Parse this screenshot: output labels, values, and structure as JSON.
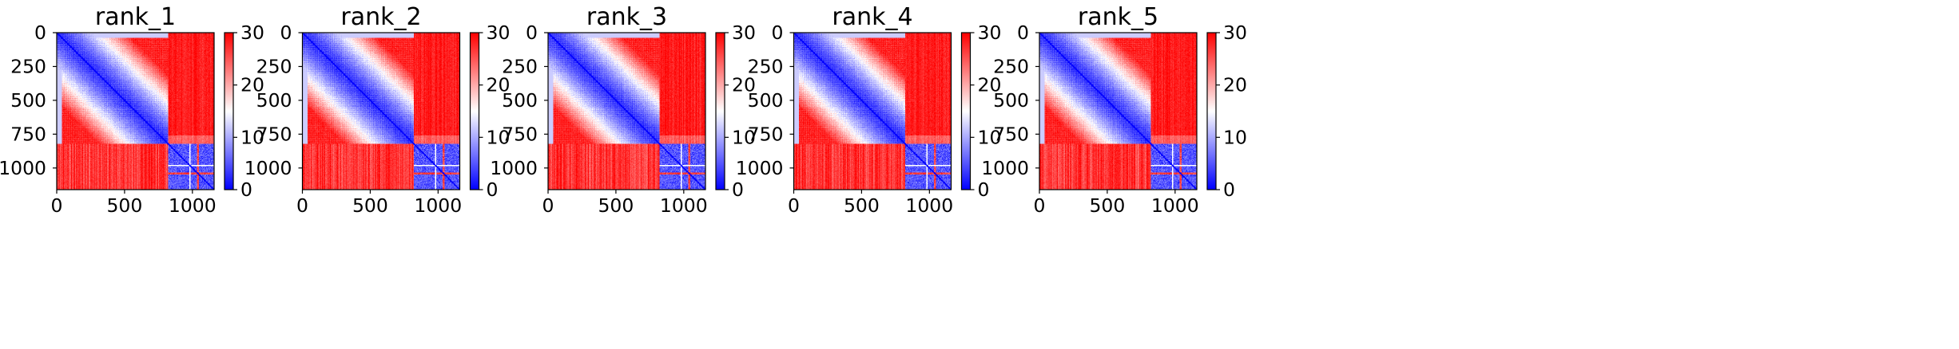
{
  "chart_data": [
    {
      "type": "heatmap",
      "title": "rank_1",
      "xlim": [
        0,
        1160
      ],
      "ylim": [
        1160,
        0
      ],
      "xticks": [
        0,
        500,
        1000
      ],
      "xticklabels": [
        "0",
        "500",
        "1000"
      ],
      "yticks": [
        0,
        250,
        500,
        750,
        1000
      ],
      "yticklabels": [
        "0",
        "250",
        "500",
        "750",
        "1000"
      ],
      "colorbar": {
        "cmap": "bwr",
        "vmin": 0,
        "vmax": 30,
        "ticks": [
          0,
          10,
          20,
          30
        ],
        "ticklabels": [
          "0",
          "10",
          "20",
          "30"
        ]
      },
      "blocks": {
        "split": 820,
        "block_a_range": [
          0,
          820
        ],
        "block_b_range": [
          820,
          1160
        ]
      },
      "values_approx": {
        "diagonal": 0,
        "within_block_a_near_diagonal": 3,
        "within_block_a_far": 28,
        "within_block_b": 5,
        "between_blocks": 30
      }
    },
    {
      "type": "heatmap",
      "title": "rank_2",
      "xlim": [
        0,
        1160
      ],
      "ylim": [
        1160,
        0
      ],
      "xticks": [
        0,
        500,
        1000
      ],
      "xticklabels": [
        "0",
        "500",
        "1000"
      ],
      "yticks": [
        0,
        250,
        500,
        750,
        1000
      ],
      "yticklabels": [
        "0",
        "250",
        "500",
        "750",
        "1000"
      ],
      "colorbar": {
        "cmap": "bwr",
        "vmin": 0,
        "vmax": 30,
        "ticks": [
          0,
          10,
          20,
          30
        ],
        "ticklabels": [
          "0",
          "10",
          "20",
          "30"
        ]
      },
      "blocks": {
        "split": 820,
        "block_a_range": [
          0,
          820
        ],
        "block_b_range": [
          820,
          1160
        ]
      },
      "values_approx": {
        "diagonal": 0,
        "within_block_a_near_diagonal": 3,
        "within_block_a_far": 28,
        "within_block_b": 5,
        "between_blocks": 30
      }
    },
    {
      "type": "heatmap",
      "title": "rank_3",
      "xlim": [
        0,
        1160
      ],
      "ylim": [
        1160,
        0
      ],
      "xticks": [
        0,
        500,
        1000
      ],
      "xticklabels": [
        "0",
        "500",
        "1000"
      ],
      "yticks": [
        0,
        250,
        500,
        750,
        1000
      ],
      "yticklabels": [
        "0",
        "250",
        "500",
        "750",
        "1000"
      ],
      "colorbar": {
        "cmap": "bwr",
        "vmin": 0,
        "vmax": 30,
        "ticks": [
          0,
          10,
          20,
          30
        ],
        "ticklabels": [
          "0",
          "10",
          "20",
          "30"
        ]
      },
      "blocks": {
        "split": 820,
        "block_a_range": [
          0,
          820
        ],
        "block_b_range": [
          820,
          1160
        ]
      },
      "values_approx": {
        "diagonal": 0,
        "within_block_a_near_diagonal": 3,
        "within_block_a_far": 28,
        "within_block_b": 5,
        "between_blocks": 30
      }
    },
    {
      "type": "heatmap",
      "title": "rank_4",
      "xlim": [
        0,
        1160
      ],
      "ylim": [
        1160,
        0
      ],
      "xticks": [
        0,
        500,
        1000
      ],
      "xticklabels": [
        "0",
        "500",
        "1000"
      ],
      "yticks": [
        0,
        250,
        500,
        750,
        1000
      ],
      "yticklabels": [
        "0",
        "250",
        "500",
        "750",
        "1000"
      ],
      "colorbar": {
        "cmap": "bwr",
        "vmin": 0,
        "vmax": 30,
        "ticks": [
          0,
          10,
          20,
          30
        ],
        "ticklabels": [
          "0",
          "10",
          "20",
          "30"
        ]
      },
      "blocks": {
        "split": 820,
        "block_a_range": [
          0,
          820
        ],
        "block_b_range": [
          820,
          1160
        ]
      },
      "values_approx": {
        "diagonal": 0,
        "within_block_a_near_diagonal": 3,
        "within_block_a_far": 28,
        "within_block_b": 5,
        "between_blocks": 30
      }
    },
    {
      "type": "heatmap",
      "title": "rank_5",
      "xlim": [
        0,
        1160
      ],
      "ylim": [
        1160,
        0
      ],
      "xticks": [
        0,
        500,
        1000
      ],
      "xticklabels": [
        "0",
        "500",
        "1000"
      ],
      "yticks": [
        0,
        250,
        500,
        750,
        1000
      ],
      "yticklabels": [
        "0",
        "250",
        "500",
        "750",
        "1000"
      ],
      "colorbar": {
        "cmap": "bwr",
        "vmin": 0,
        "vmax": 30,
        "ticks": [
          0,
          10,
          20,
          30
        ],
        "ticklabels": [
          "0",
          "10",
          "20",
          "30"
        ]
      },
      "blocks": {
        "split": 820,
        "block_a_range": [
          0,
          820
        ],
        "block_b_range": [
          820,
          1160
        ]
      },
      "values_approx": {
        "diagonal": 0,
        "within_block_a_near_diagonal": 3,
        "within_block_a_far": 28,
        "within_block_b": 5,
        "between_blocks": 30
      }
    }
  ]
}
